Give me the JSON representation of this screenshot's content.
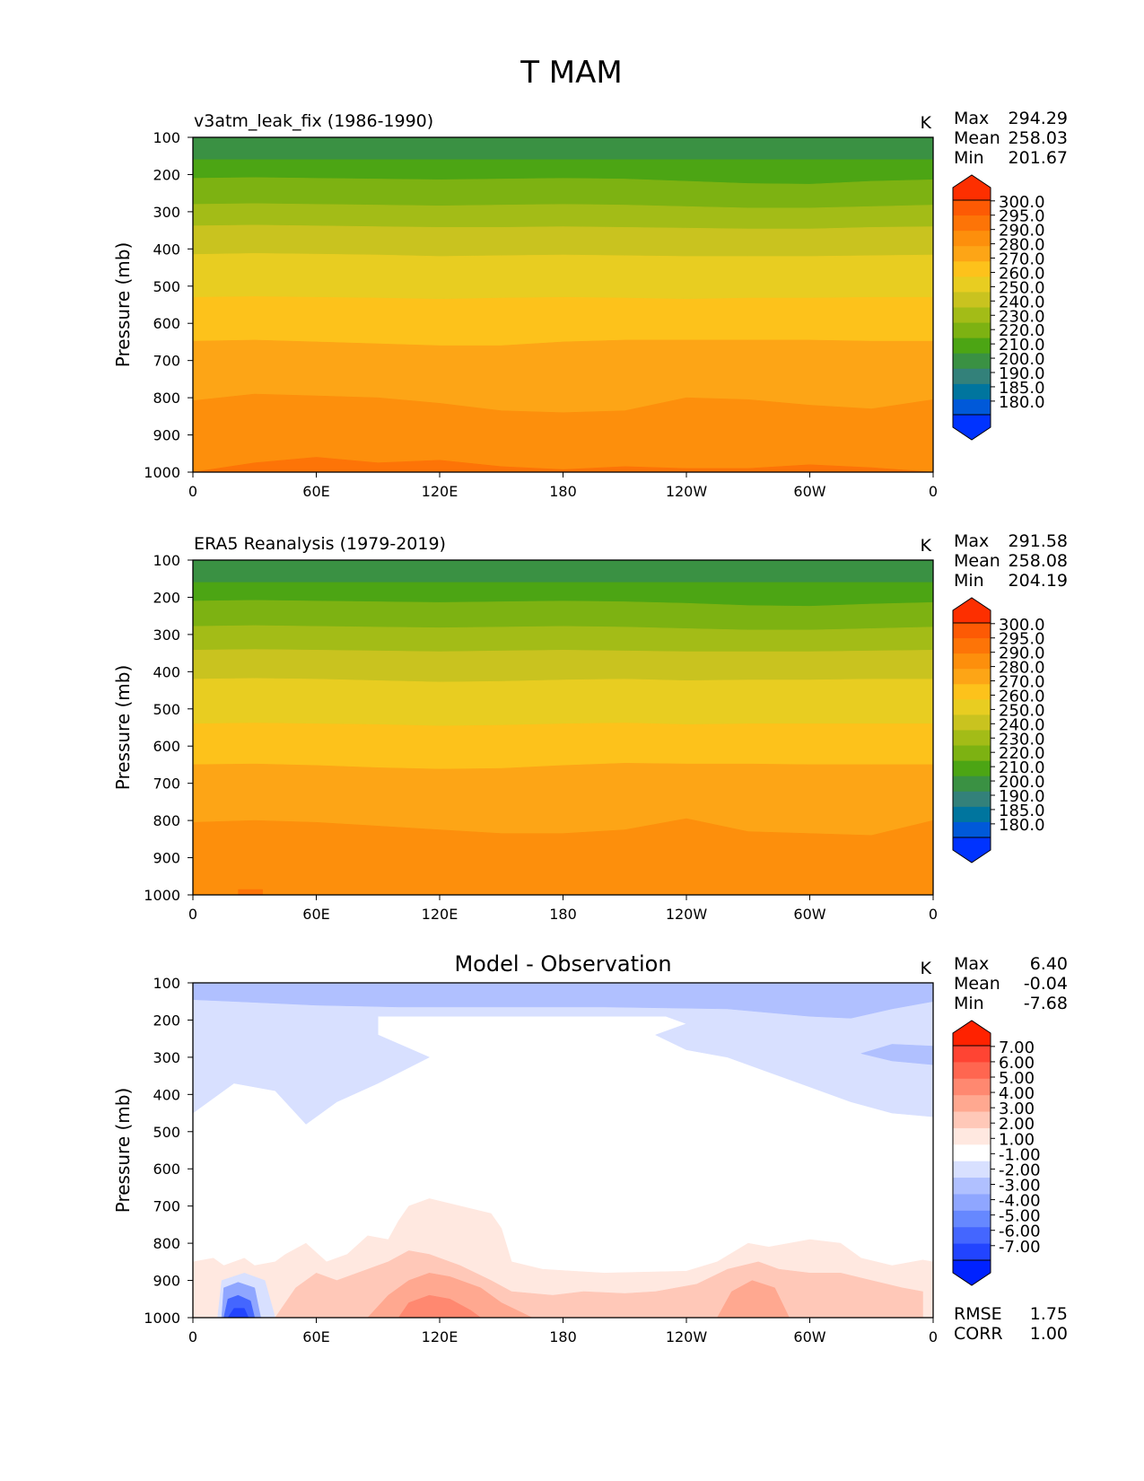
{
  "figure": {
    "title": "T MAM"
  },
  "colors": {
    "abs_levels": [
      "#0033ff",
      "#0059d9",
      "#00759e",
      "#33817a",
      "#3a9143",
      "#4ca514",
      "#7db212",
      "#a3bc17",
      "#c9c31f",
      "#e8cd21",
      "#fdc21b",
      "#fda516",
      "#fd8f0c",
      "#fd7407",
      "#fd5a04",
      "#fd2f00"
    ],
    "diff_levels": [
      "#0022ff",
      "#2244ff",
      "#4466ff",
      "#6688ff",
      "#8fa6ff",
      "#b0c0ff",
      "#d8e0ff",
      "#ffffff",
      "#ffe8e0",
      "#ffc8b8",
      "#ffa890",
      "#ff8870",
      "#ff6650",
      "#ff4433",
      "#ff2200"
    ]
  },
  "chart_data": [
    {
      "type": "contourf",
      "id": "panel1",
      "title": "v3atm_leak_fix (1986-1990)",
      "units": "K",
      "xlabel": "",
      "ylabel": "Pressure (mb)",
      "x_ticks": [
        "0",
        "60E",
        "120E",
        "180",
        "120W",
        "60W",
        "0"
      ],
      "y_ticks": [
        "100",
        "200",
        "300",
        "400",
        "500",
        "600",
        "700",
        "800",
        "900",
        "1000"
      ],
      "xlim": [
        0,
        360
      ],
      "ylim": [
        100,
        1000
      ],
      "stats": [
        {
          "label": "Max",
          "value": "294.29"
        },
        {
          "label": "Mean",
          "value": "258.03"
        },
        {
          "label": "Min",
          "value": "201.67"
        }
      ],
      "bands": [
        {
          "top": [
            100
          ],
          "color": "#3a9143"
        },
        {
          "top": [
            160
          ],
          "color": "#4ca514"
        },
        {
          "top": [
            210,
            208,
            210,
            212,
            214,
            212,
            210,
            212,
            218,
            224,
            226,
            218,
            214
          ],
          "color": "#7db212"
        },
        {
          "top": [
            280,
            278,
            280,
            282,
            284,
            282,
            280,
            282,
            286,
            290,
            290,
            286,
            282
          ],
          "color": "#a3bc17"
        },
        {
          "top": [
            338,
            336,
            338,
            340,
            342,
            342,
            340,
            342,
            344,
            346,
            346,
            342,
            340
          ],
          "color": "#c9c31f"
        },
        {
          "top": [
            415,
            412,
            414,
            416,
            420,
            418,
            416,
            418,
            420,
            420,
            420,
            418,
            416
          ],
          "color": "#e8cd21"
        },
        {
          "top": [
            530,
            528,
            530,
            532,
            535,
            532,
            530,
            532,
            535,
            532,
            532,
            530,
            530
          ],
          "color": "#fdc21b"
        },
        {
          "top": [
            648,
            645,
            650,
            655,
            660,
            660,
            650,
            645,
            645,
            645,
            645,
            648,
            648
          ],
          "color": "#fda516"
        },
        {
          "top": [
            808,
            790,
            795,
            800,
            815,
            835,
            840,
            835,
            800,
            805,
            820,
            830,
            805
          ],
          "color": "#fd8f0c"
        },
        {
          "top": [
            1000,
            975,
            960,
            975,
            968,
            985,
            993,
            985,
            990,
            990,
            980,
            988,
            1000
          ],
          "color": "#fd7407"
        }
      ]
    },
    {
      "type": "contourf",
      "id": "panel2",
      "title": "ERA5 Reanalysis (1979-2019)",
      "units": "K",
      "xlabel": "",
      "ylabel": "Pressure (mb)",
      "x_ticks": [
        "0",
        "60E",
        "120E",
        "180",
        "120W",
        "60W",
        "0"
      ],
      "y_ticks": [
        "100",
        "200",
        "300",
        "400",
        "500",
        "600",
        "700",
        "800",
        "900",
        "1000"
      ],
      "xlim": [
        0,
        360
      ],
      "ylim": [
        100,
        1000
      ],
      "stats": [
        {
          "label": "Max",
          "value": "291.58"
        },
        {
          "label": "Mean",
          "value": "258.08"
        },
        {
          "label": "Min",
          "value": "204.19"
        }
      ],
      "bands": [
        {
          "top": [
            100
          ],
          "color": "#3a9143"
        },
        {
          "top": [
            160
          ],
          "color": "#4ca514"
        },
        {
          "top": [
            210,
            208,
            210,
            212,
            214,
            212,
            210,
            212,
            216,
            222,
            224,
            218,
            214
          ],
          "color": "#7db212"
        },
        {
          "top": [
            278,
            276,
            278,
            280,
            282,
            280,
            278,
            280,
            284,
            288,
            288,
            284,
            280
          ],
          "color": "#a3bc17"
        },
        {
          "top": [
            342,
            340,
            342,
            344,
            346,
            344,
            342,
            344,
            346,
            346,
            346,
            344,
            342
          ],
          "color": "#c9c31f"
        },
        {
          "top": [
            420,
            418,
            420,
            424,
            428,
            426,
            422,
            420,
            424,
            422,
            422,
            420,
            420
          ],
          "color": "#e8cd21"
        },
        {
          "top": [
            540,
            538,
            540,
            542,
            546,
            544,
            540,
            538,
            542,
            540,
            540,
            540,
            540
          ],
          "color": "#fdc21b"
        },
        {
          "top": [
            650,
            648,
            652,
            658,
            662,
            660,
            652,
            646,
            648,
            648,
            650,
            650,
            650
          ],
          "color": "#fda516"
        },
        {
          "top": [
            805,
            800,
            805,
            815,
            825,
            835,
            835,
            825,
            795,
            830,
            835,
            840,
            800
          ],
          "color": "#fd8f0c"
        }
      ],
      "spots": [
        {
          "x": 22,
          "y": 985,
          "w": 12,
          "h": 20,
          "color": "#fd7407"
        }
      ]
    },
    {
      "type": "contourf",
      "id": "panel3",
      "title": "Model - Observation",
      "units": "K",
      "xlabel": "",
      "ylabel": "Pressure (mb)",
      "x_ticks": [
        "0",
        "60E",
        "120E",
        "180",
        "120W",
        "60W",
        "0"
      ],
      "y_ticks": [
        "100",
        "200",
        "300",
        "400",
        "500",
        "600",
        "700",
        "800",
        "900",
        "1000"
      ],
      "xlim": [
        0,
        360
      ],
      "ylim": [
        100,
        1000
      ],
      "stats": [
        {
          "label": "Max",
          "value": "6.40"
        },
        {
          "label": "Mean",
          "value": "-0.04"
        },
        {
          "label": "Min",
          "value": "-7.68"
        }
      ],
      "extra_stats": [
        {
          "label": "RMSE",
          "value": "1.75"
        },
        {
          "label": "CORR",
          "value": "1.00"
        }
      ],
      "bands": [
        {
          "top": [
            100
          ],
          "color": "#ffffff"
        }
      ],
      "regions": [
        {
          "color": "#d8e0ff",
          "pts": [
            [
              0,
              100
            ],
            [
              360,
              100
            ],
            [
              360,
              460
            ],
            [
              340,
              450
            ],
            [
              320,
              420
            ],
            [
              300,
              380
            ],
            [
              280,
              340
            ],
            [
              260,
              300
            ],
            [
              240,
              280
            ],
            [
              225,
              240
            ],
            [
              240,
              210
            ],
            [
              230,
              190
            ],
            [
              90,
              190
            ],
            [
              90,
              240
            ],
            [
              115,
              300
            ],
            [
              90,
              370
            ],
            [
              70,
              420
            ],
            [
              55,
              480
            ],
            [
              40,
              390
            ],
            [
              20,
              370
            ],
            [
              10,
              410
            ],
            [
              0,
              450
            ]
          ]
        },
        {
          "color": "#b0c0ff",
          "pts": [
            [
              0,
              100
            ],
            [
              360,
              100
            ],
            [
              360,
              150
            ],
            [
              340,
              170
            ],
            [
              320,
              195
            ],
            [
              300,
              190
            ],
            [
              260,
              170
            ],
            [
              200,
              165
            ],
            [
              100,
              165
            ],
            [
              60,
              160
            ],
            [
              20,
              150
            ],
            [
              0,
              145
            ]
          ]
        },
        {
          "color": "#b0c0ff",
          "pts": [
            [
              325,
              290
            ],
            [
              340,
              265
            ],
            [
              360,
              270
            ],
            [
              360,
              320
            ],
            [
              340,
              310
            ]
          ]
        },
        {
          "color": "#ffe8e0",
          "pts": [
            [
              0,
              850
            ],
            [
              10,
              840
            ],
            [
              15,
              860
            ],
            [
              25,
              840
            ],
            [
              30,
              860
            ],
            [
              40,
              850
            ],
            [
              45,
              830
            ],
            [
              55,
              800
            ],
            [
              65,
              850
            ],
            [
              75,
              830
            ],
            [
              85,
              780
            ],
            [
              95,
              790
            ],
            [
              100,
              740
            ],
            [
              105,
              700
            ],
            [
              115,
              680
            ],
            [
              130,
              700
            ],
            [
              145,
              720
            ],
            [
              150,
              760
            ],
            [
              155,
              850
            ],
            [
              170,
              870
            ],
            [
              200,
              880
            ],
            [
              240,
              875
            ],
            [
              255,
              850
            ],
            [
              270,
              800
            ],
            [
              280,
              810
            ],
            [
              300,
              790
            ],
            [
              315,
              800
            ],
            [
              325,
              840
            ],
            [
              340,
              860
            ],
            [
              355,
              845
            ],
            [
              360,
              850
            ],
            [
              360,
              1000
            ],
            [
              0,
              1000
            ]
          ]
        },
        {
          "color": "#ffc8b8",
          "pts": [
            [
              40,
              1000
            ],
            [
              50,
              920
            ],
            [
              60,
              880
            ],
            [
              70,
              900
            ],
            [
              80,
              880
            ],
            [
              95,
              850
            ],
            [
              105,
              820
            ],
            [
              115,
              830
            ],
            [
              130,
              860
            ],
            [
              145,
              900
            ],
            [
              155,
              930
            ],
            [
              175,
              940
            ],
            [
              190,
              930
            ],
            [
              210,
              935
            ],
            [
              225,
              930
            ],
            [
              245,
              910
            ],
            [
              260,
              870
            ],
            [
              275,
              850
            ],
            [
              285,
              870
            ],
            [
              300,
              880
            ],
            [
              315,
              880
            ],
            [
              330,
              900
            ],
            [
              345,
              920
            ],
            [
              355,
              930
            ],
            [
              355,
              1000
            ]
          ]
        },
        {
          "color": "#ffa890",
          "pts": [
            [
              85,
              1000
            ],
            [
              95,
              940
            ],
            [
              105,
              900
            ],
            [
              115,
              880
            ],
            [
              125,
              890
            ],
            [
              140,
              920
            ],
            [
              150,
              960
            ],
            [
              165,
              1000
            ]
          ]
        },
        {
          "color": "#ffa890",
          "pts": [
            [
              255,
              1000
            ],
            [
              262,
              930
            ],
            [
              272,
              900
            ],
            [
              283,
              920
            ],
            [
              290,
              1000
            ]
          ]
        },
        {
          "color": "#ff8870",
          "pts": [
            [
              100,
              1000
            ],
            [
              105,
              960
            ],
            [
              115,
              940
            ],
            [
              125,
              950
            ],
            [
              135,
              980
            ],
            [
              140,
              1000
            ]
          ]
        },
        {
          "color": "#d8e0ff",
          "pts": [
            [
              12,
              1000
            ],
            [
              14,
              900
            ],
            [
              25,
              880
            ],
            [
              35,
              900
            ],
            [
              40,
              1000
            ]
          ]
        },
        {
          "color": "#8fa6ff",
          "pts": [
            [
              14,
              1000
            ],
            [
              15,
              920
            ],
            [
              22,
              905
            ],
            [
              30,
              920
            ],
            [
              33,
              1000
            ]
          ]
        },
        {
          "color": "#4466ff",
          "pts": [
            [
              15,
              1000
            ],
            [
              17,
              950
            ],
            [
              22,
              940
            ],
            [
              28,
              955
            ],
            [
              30,
              1000
            ]
          ]
        },
        {
          "color": "#2244ff",
          "pts": [
            [
              17,
              1000
            ],
            [
              20,
              975
            ],
            [
              25,
              975
            ],
            [
              27,
              1000
            ]
          ]
        }
      ]
    }
  ],
  "colorbars": [
    {
      "labels": [
        "300.0",
        "295.0",
        "290.0",
        "280.0",
        "270.0",
        "260.0",
        "250.0",
        "240.0",
        "230.0",
        "220.0",
        "210.0",
        "200.0",
        "190.0",
        "185.0",
        "180.0"
      ]
    },
    {
      "labels": [
        "300.0",
        "295.0",
        "290.0",
        "280.0",
        "270.0",
        "260.0",
        "250.0",
        "240.0",
        "230.0",
        "220.0",
        "210.0",
        "200.0",
        "190.0",
        "185.0",
        "180.0"
      ]
    },
    {
      "labels": [
        "7.00",
        "6.00",
        "5.00",
        "4.00",
        "3.00",
        "2.00",
        "1.00",
        "-1.00",
        "-2.00",
        "-3.00",
        "-4.00",
        "-5.00",
        "-6.00",
        "-7.00"
      ]
    }
  ]
}
